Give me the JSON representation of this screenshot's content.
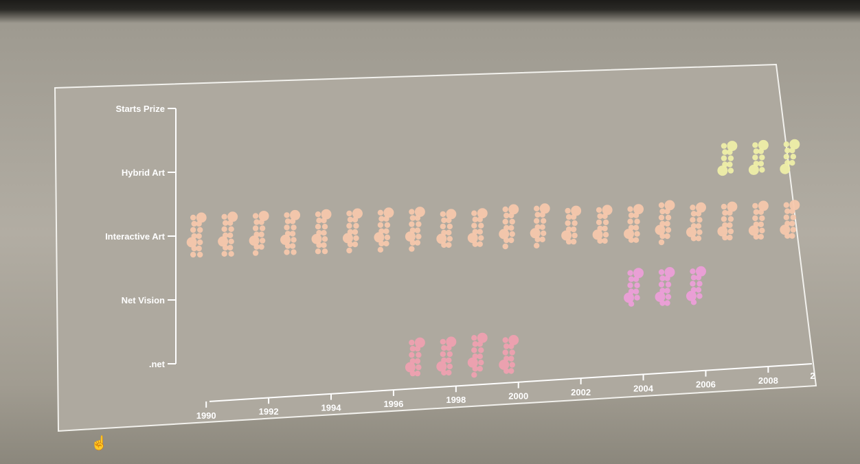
{
  "chart_data": {
    "type": "scatter",
    "title": "",
    "xlabel": "",
    "ylabel": "",
    "y_categories": [
      "Starts Prize",
      "Hybrid Art",
      "Interactive Art",
      "Net Vision",
      ".net"
    ],
    "x_ticks": [
      1990,
      1992,
      1994,
      1996,
      1998,
      2000,
      2002,
      2004,
      2006,
      2008
    ],
    "x_cut_label": "2",
    "xlim": [
      1989.6,
      2009.4
    ],
    "grid": false,
    "legend": "none",
    "series": [
      {
        "category": "Interactive Art",
        "color": "#f6c7ac",
        "years": [
          1990,
          1991,
          1992,
          1993,
          1994,
          1995,
          1996,
          1997,
          1998,
          1999,
          2000,
          2001,
          2002,
          2003,
          2004,
          2005,
          2006,
          2007,
          2008,
          2009
        ],
        "counts": [
          14,
          14,
          13,
          14,
          14,
          13,
          13,
          13,
          12,
          12,
          13,
          13,
          12,
          12,
          12,
          13,
          12,
          12,
          12,
          12
        ]
      },
      {
        "category": "Hybrid Art",
        "color": "#eeeea8",
        "years": [
          2007,
          2008,
          2009
        ],
        "counts": [
          10,
          10,
          9
        ]
      },
      {
        "category": "Net Vision",
        "color": "#ec9ed8",
        "years": [
          2004,
          2005,
          2006
        ],
        "counts": [
          11,
          12,
          11
        ]
      },
      {
        "category": ".net",
        "color": "#eea0b0",
        "years": [
          1997,
          1998,
          1999,
          2000
        ],
        "counts": [
          12,
          12,
          13,
          12
        ]
      }
    ]
  }
}
